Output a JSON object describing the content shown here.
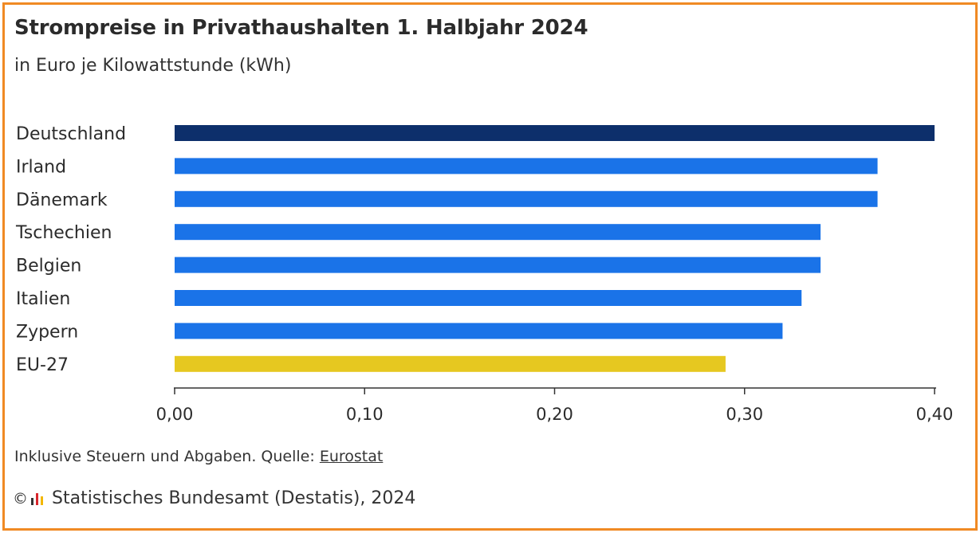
{
  "title": "Strompreise in Privathaushalten 1. Halbjahr 2024",
  "subtitle": "in Euro je Kilowattstunde (kWh)",
  "note_prefix": "Inklusive Steuern und Abgaben. Quelle: ",
  "note_link": "Eurostat",
  "copyright_symbol": "©",
  "copyright_text": "Statistisches Bundesamt (Destatis), 2024",
  "colors": {
    "frame": "#f08a24",
    "highlight": "#0d2f6b",
    "default": "#1a73e8",
    "eu": "#e6c820",
    "logo_dark": "#333333",
    "logo_red": "#d9262c",
    "logo_yellow": "#f3b700"
  },
  "chart_data": {
    "type": "bar",
    "orientation": "horizontal",
    "categories": [
      "Deutschland",
      "Irland",
      "Dänemark",
      "Tschechien",
      "Belgien",
      "Italien",
      "Zypern",
      "EU-27"
    ],
    "values": [
      0.4,
      0.37,
      0.37,
      0.34,
      0.34,
      0.33,
      0.32,
      0.29
    ],
    "bar_colors": [
      "highlight",
      "default",
      "default",
      "default",
      "default",
      "default",
      "default",
      "eu"
    ],
    "xlim": [
      0,
      0.4
    ],
    "xticks": [
      0,
      0.1,
      0.2,
      0.3,
      0.4
    ],
    "xtick_labels": [
      "0,00",
      "0,10",
      "0,20",
      "0,30",
      "0,40"
    ],
    "grid": false
  }
}
